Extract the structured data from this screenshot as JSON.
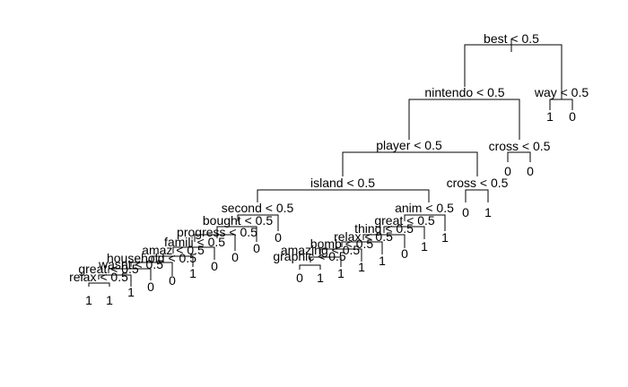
{
  "tree": {
    "splits": [
      {
        "id": "best",
        "label": "best < 0.5"
      },
      {
        "id": "nintendo",
        "label": "nintendo < 0.5"
      },
      {
        "id": "way",
        "label": "way < 0.5"
      },
      {
        "id": "player",
        "label": "player < 0.5"
      },
      {
        "id": "cross1",
        "label": "cross < 0.5"
      },
      {
        "id": "island",
        "label": "island < 0.5"
      },
      {
        "id": "cross2",
        "label": "cross < 0.5"
      },
      {
        "id": "second",
        "label": "second < 0.5"
      },
      {
        "id": "anim",
        "label": "anim < 0.5"
      },
      {
        "id": "bought",
        "label": "bought < 0.5"
      },
      {
        "id": "progress",
        "label": "progress < 0.5"
      },
      {
        "id": "famili",
        "label": "famili < 0.5"
      },
      {
        "id": "amaz",
        "label": "amaz < 0.5"
      },
      {
        "id": "household",
        "label": "household < 0.5"
      },
      {
        "id": "wasnt",
        "label": "wasnt < 0.5"
      },
      {
        "id": "great1",
        "label": "great < 0.5"
      },
      {
        "id": "relax1",
        "label": "relax < 0.5"
      },
      {
        "id": "great2",
        "label": "great < 0.5"
      },
      {
        "id": "thing",
        "label": "thing < 0.5"
      },
      {
        "id": "relax2",
        "label": "relax < 0.5"
      },
      {
        "id": "bomb",
        "label": "bomb < 0.5"
      },
      {
        "id": "amazing",
        "label": "amazing < 0.5"
      },
      {
        "id": "graphic",
        "label": "graphic < 0.5"
      }
    ],
    "leaves": [
      {
        "id": "way_l",
        "label": "1"
      },
      {
        "id": "way_r",
        "label": "0"
      },
      {
        "id": "cross1_l",
        "label": "0"
      },
      {
        "id": "cross1_r",
        "label": "0"
      },
      {
        "id": "cross2_l",
        "label": "0"
      },
      {
        "id": "cross2_r",
        "label": "1"
      },
      {
        "id": "second_r",
        "label": "0"
      },
      {
        "id": "bought_r",
        "label": "0"
      },
      {
        "id": "progress_r",
        "label": "0"
      },
      {
        "id": "famili_r",
        "label": "0"
      },
      {
        "id": "amaz_r",
        "label": "1"
      },
      {
        "id": "household_r",
        "label": "0"
      },
      {
        "id": "wasnt_r",
        "label": "0"
      },
      {
        "id": "great1_r",
        "label": "1"
      },
      {
        "id": "relax1_l",
        "label": "1"
      },
      {
        "id": "relax1_r",
        "label": "1"
      },
      {
        "id": "anim_r",
        "label": "1"
      },
      {
        "id": "great2_r",
        "label": "1"
      },
      {
        "id": "thing_r",
        "label": "0"
      },
      {
        "id": "relax2_r",
        "label": "1"
      },
      {
        "id": "bomb_r",
        "label": "1"
      },
      {
        "id": "amazing_r",
        "label": "1"
      },
      {
        "id": "graphic_l",
        "label": "0"
      },
      {
        "id": "graphic_r",
        "label": "1"
      }
    ]
  }
}
